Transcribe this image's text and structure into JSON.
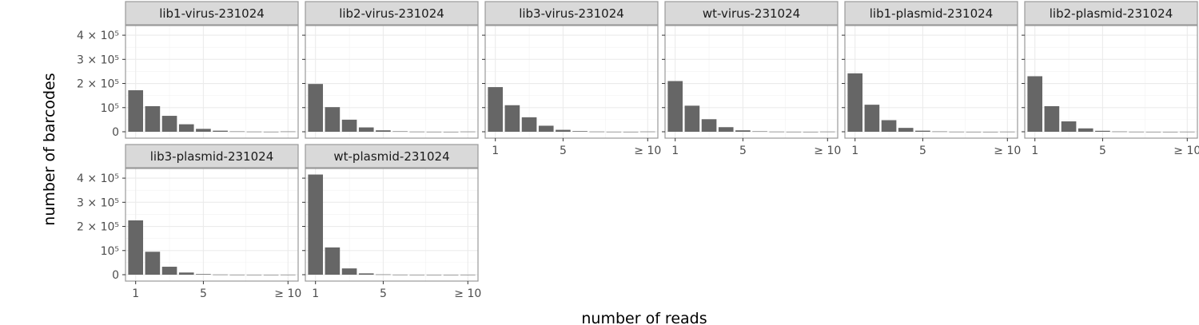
{
  "chart_data": {
    "type": "bar",
    "xlabel": "number of reads",
    "ylabel": "number of barcodes",
    "x_tick_labels": [
      "1",
      "5",
      "≥ 10"
    ],
    "y_tick_labels": [
      "0",
      "10⁵",
      "2 × 10⁵",
      "3 × 10⁵",
      "4 × 10⁵"
    ],
    "ylim": [
      0,
      440000
    ],
    "categories": [
      1,
      2,
      3,
      4,
      5,
      6,
      7,
      8,
      9,
      10
    ],
    "grid": true,
    "facets": [
      {
        "name": "lib1-virus-231024",
        "values": [
          172000,
          106000,
          66000,
          31000,
          12000,
          4500,
          1500,
          700,
          300,
          1200
        ]
      },
      {
        "name": "lib2-virus-231024",
        "values": [
          198000,
          102000,
          50000,
          18000,
          6000,
          1800,
          600,
          250,
          100,
          800
        ]
      },
      {
        "name": "lib3-virus-231024",
        "values": [
          185000,
          110000,
          60000,
          25000,
          8000,
          2500,
          800,
          300,
          150,
          900
        ]
      },
      {
        "name": "wt-virus-231024",
        "values": [
          210000,
          108000,
          52000,
          19000,
          6000,
          1800,
          600,
          250,
          100,
          700
        ]
      },
      {
        "name": "lib1-plasmid-231024",
        "values": [
          242000,
          112000,
          48000,
          16000,
          4500,
          1300,
          400,
          150,
          80,
          500
        ]
      },
      {
        "name": "lib2-plasmid-231024",
        "values": [
          230000,
          106000,
          43000,
          14000,
          4000,
          1100,
          350,
          130,
          60,
          400
        ]
      },
      {
        "name": "lib3-plasmid-231024",
        "values": [
          225000,
          95000,
          33000,
          9000,
          2500,
          700,
          250,
          100,
          50,
          300
        ]
      },
      {
        "name": "wt-plasmid-231024",
        "values": [
          415000,
          113000,
          26000,
          5500,
          1200,
          300,
          100,
          50,
          30,
          200
        ]
      }
    ],
    "bar_color": "#666666"
  }
}
